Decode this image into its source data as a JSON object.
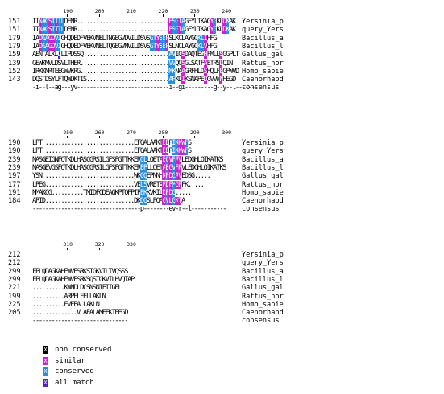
{
  "blocks": [
    {
      "ruler": [
        {
          "label": "190",
          "col": 11
        },
        {
          "label": "200",
          "col": 21
        },
        {
          "label": "210",
          "col": 31
        },
        {
          "label": "220",
          "col": 41
        },
        {
          "label": "230",
          "col": 51
        },
        {
          "label": "240",
          "col": 61
        }
      ],
      "rows": [
        {
          "num": "151",
          "seq": "ITNAGSTITLDENR.............................ESGTAGEYLTKAGYGKLDKAK",
          "name": "Yersinia_p"
        },
        {
          "num": "151",
          "seq": "ITNAGSTITLDENR.............................ESGTAGEYLTKAGYGKLDKAK",
          "name": "query_Yers"
        },
        {
          "num": "179",
          "seq": "IADGAGDVIGHQDEDFVEKVNELTNGEGVDVILDSVSGTYSERSLKCLAYGGKLIHFG",
          "name": "Bacillus_a"
        },
        {
          "num": "179",
          "seq": "IADGAGDVIGHQDEDFVEKVNELTQGEGVNVILDSVSGTYSERSLNCLAYGGKLVHFG",
          "name": "Bacillus_l"
        },
        {
          "num": "159",
          "seq": "AENTALKLDLIPDSSQ...........................AVIGSDAQTEGHFMLLSGGPLT",
          "name": "Gallus_gal"
        },
        {
          "num": "139",
          "seq": "GEWKMVLDSVLTHER............................VVQGSGLSATFAETRSLQIN",
          "name": "Rattus_nor"
        },
        {
          "num": "152",
          "seq": "IRKKNRTEEGWVKRG............................MKNAAGRFHLDSHQLFEGFWVD",
          "name": "Homo_sapie"
        },
        {
          "num": "143",
          "seq": "DQSTDSYLFTQWDKTIS..........................APKDIKSNAPEDGVVWNHEGD",
          "name": "Caenorhabd"
        },
        {
          "num": "",
          "seq": "-i--l--ag---yv-----------------------------i--gi---------g--y--l------",
          "name": "consensus"
        }
      ]
    },
    {
      "ruler": [
        {
          "label": "250",
          "col": 11
        },
        {
          "label": "260",
          "col": 21
        },
        {
          "label": "270",
          "col": 31
        },
        {
          "label": "280",
          "col": 41
        },
        {
          "label": "290",
          "col": 51
        },
        {
          "label": "300",
          "col": 61
        }
      ],
      "rows": [
        {
          "num": "190",
          "seq": "LPT.............................EFQALAAKTEDPIKKWFS",
          "name": "Yersinia_p"
        },
        {
          "num": "190",
          "seq": "LPT.............................EFQALAAKTEDPIKKWFS",
          "name": "query_Yers"
        },
        {
          "num": "239",
          "seq": "NASGEIGNFQTKDLHASCGRSILGFSFGTTKKERGLLQETAEGVFRVLEDGHLQIKATKS",
          "name": "Bacillus_a"
        },
        {
          "num": "239",
          "seq": "NASGEVGSFQTKDLHASCGRSILGFSFGTTKKEREPLLQETAEGVFRVLEDGHLQIKATKS",
          "name": "Bacillus_l"
        },
        {
          "num": "197",
          "seq": "YSN.............................WKGQEPNNHKNDGAVEDSG.....",
          "name": "Gallus_gal"
        },
        {
          "num": "177",
          "seq": "LPEG............................VELSVRETEPDFMGRFK.....",
          "name": "Rattus_nor"
        },
        {
          "num": "191",
          "seq": "NMAKCG..........TMIDFGDEAGKPTQFPIPEKKVKILDPDG.....",
          "name": "Homo_sapie"
        },
        {
          "num": "184",
          "seq": "APID............................DKDGSLPQAGVLGKTA",
          "name": "Caenorhabd"
        },
        {
          "num": "",
          "seq": "----------------------------------p--------ev-r--l-----------",
          "name": "consensus"
        }
      ]
    },
    {
      "ruler": [
        {
          "label": "310",
          "col": 11
        },
        {
          "label": "320",
          "col": 21
        },
        {
          "label": "330",
          "col": 31
        }
      ],
      "rows": [
        {
          "num": "212",
          "seq": "",
          "name": "Yersinia_p"
        },
        {
          "num": "212",
          "seq": "",
          "name": "query_Yers"
        },
        {
          "num": "299",
          "seq": "FPLQDAGKAHEWVESRKSTGKVILTVQSSS",
          "name": "Bacillus_a"
        },
        {
          "num": "299",
          "seq": "FPLQDAGKAHEWVESRKSQSTGKVILHVQTAP",
          "name": "Bacillus_l"
        },
        {
          "num": "221",
          "seq": "..........KWNDLDCSNSNIFIIGEL",
          "name": "Gallus_gal"
        },
        {
          "num": "199",
          "seq": "..........ARPELEELLAKLN",
          "name": "Rattus_nor"
        },
        {
          "num": "225",
          "seq": "..........EVEEALLAKLN",
          "name": "Homo_sapie"
        },
        {
          "num": "205",
          "seq": "..............VLAEALAMFEKTEEGD",
          "name": "Caenorhabd"
        },
        {
          "num": "",
          "seq": "------------------------------",
          "name": "consensus"
        }
      ]
    }
  ],
  "highlights": [
    {
      "block": 0,
      "rows": [
        0,
        1
      ],
      "cols": [
        2,
        5,
        7,
        43,
        46,
        56,
        60
      ],
      "class": "similar"
    },
    {
      "block": 0,
      "rows": [
        0,
        1
      ],
      "cols": [
        3,
        4,
        6,
        8,
        9,
        44,
        45,
        47,
        57,
        61
      ],
      "class": "conserved"
    },
    {
      "block": 0,
      "rows": [
        2,
        3
      ],
      "cols": [
        3,
        4,
        7,
        8,
        37,
        38,
        40,
        41,
        52,
        53,
        58
      ],
      "class": "conserved"
    },
    {
      "block": 0,
      "rows": [
        2,
        3
      ],
      "cols": [
        2,
        5,
        6,
        39,
        42,
        54,
        59
      ],
      "class": "similar"
    },
    {
      "block": 0,
      "rows": [
        4
      ],
      "cols": [
        8
      ],
      "class": "allmatch"
    },
    {
      "block": 0,
      "rows": [
        4,
        5,
        6,
        7
      ],
      "cols": [
        43,
        44
      ],
      "class": "conserved"
    },
    {
      "block": 0,
      "rows": [
        4,
        5,
        6,
        7
      ],
      "cols": [
        47,
        54,
        59
      ],
      "class": "similar"
    },
    {
      "block": 1,
      "rows": [
        0,
        1
      ],
      "cols": [
        41,
        42,
        46,
        47
      ],
      "class": "similar"
    },
    {
      "block": 1,
      "rows": [
        0,
        1
      ],
      "cols": [
        44,
        45,
        48
      ],
      "class": "conserved"
    },
    {
      "block": 1,
      "rows": [
        2,
        3,
        4,
        5,
        6,
        7
      ],
      "cols": [
        34,
        35,
        42,
        44
      ],
      "class": "conserved"
    },
    {
      "block": 1,
      "rows": [
        2,
        3,
        4,
        5,
        6,
        7
      ],
      "cols": [
        41,
        43,
        45,
        46
      ],
      "class": "similar"
    }
  ],
  "legend": [
    {
      "glyph": "X",
      "label": "non conserved",
      "color": "#000000"
    },
    {
      "glyph": "X",
      "label": "similar",
      "color": "#cc22cc"
    },
    {
      "glyph": "X",
      "label": "conserved",
      "color": "#2a8ee0"
    },
    {
      "glyph": "X",
      "label": "all match",
      "color": "#5522bb"
    }
  ],
  "colors": {
    "similar": "#cc22cc",
    "conserved": "#2a8ee0",
    "allmatch": "#5522bb"
  }
}
